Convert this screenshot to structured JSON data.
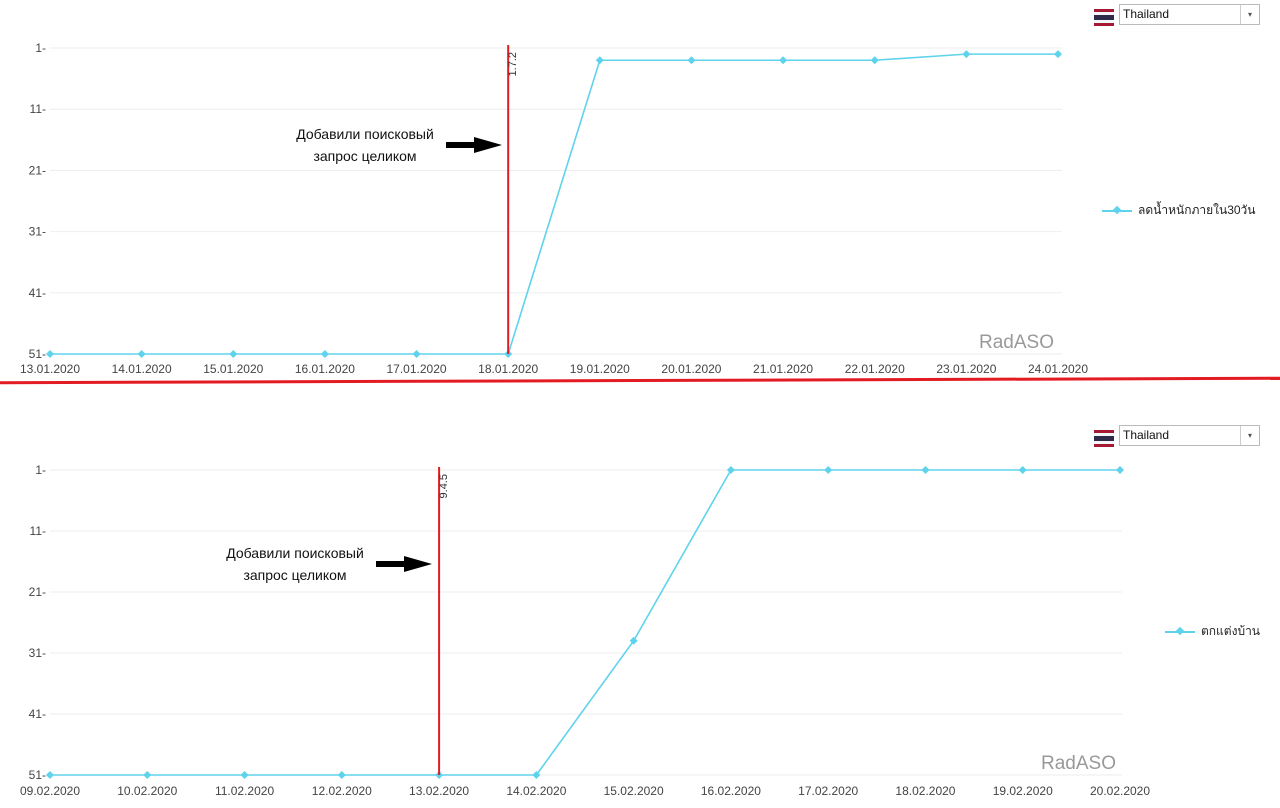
{
  "country_select": {
    "value": "Thailand",
    "caret": "▾",
    "flag_icon": "thailand-flag-icon"
  },
  "colors": {
    "series": "#5fd3ec",
    "marker": "#e31b23",
    "divider": "#e31b23",
    "grid": "#eeeeee",
    "watermark": "#999999"
  },
  "watermark": "RadASO",
  "chart_data": [
    {
      "type": "line",
      "x": [
        "13.01.2020",
        "14.01.2020",
        "15.01.2020",
        "16.01.2020",
        "17.01.2020",
        "18.01.2020",
        "19.01.2020",
        "20.01.2020",
        "21.01.2020",
        "22.01.2020",
        "23.01.2020",
        "24.01.2020"
      ],
      "series": [
        {
          "name": "ลดน้ำหนักภายใน30วัน",
          "values": [
            51,
            51,
            51,
            51,
            51,
            51,
            3,
            3,
            3,
            3,
            2,
            2
          ]
        }
      ],
      "yticks": [
        "1-",
        "11-",
        "21-",
        "31-",
        "41-",
        "51-"
      ],
      "ylim": [
        1,
        51
      ],
      "y_reversed": true,
      "grid": true,
      "legend_position": "right",
      "marker": {
        "x": "18.01.2020",
        "label": "1.7.2"
      },
      "annotation": {
        "line1": "Добавили поисковый",
        "line2": "запрос целиком"
      }
    },
    {
      "type": "line",
      "x": [
        "09.02.2020",
        "10.02.2020",
        "11.02.2020",
        "12.02.2020",
        "13.02.2020",
        "14.02.2020",
        "15.02.2020",
        "16.02.2020",
        "17.02.2020",
        "18.02.2020",
        "19.02.2020",
        "20.02.2020"
      ],
      "series": [
        {
          "name": "ตกแต่งบ้าน",
          "values": [
            51,
            51,
            51,
            51,
            51,
            51,
            29,
            1,
            1,
            1,
            1,
            1
          ]
        }
      ],
      "yticks": [
        "1-",
        "11-",
        "21-",
        "31-",
        "41-",
        "51-"
      ],
      "ylim": [
        1,
        51
      ],
      "y_reversed": true,
      "grid": true,
      "legend_position": "right",
      "marker": {
        "x": "13.02.2020",
        "label": "9.4.5"
      },
      "annotation": {
        "line1": "Добавили поисковый",
        "line2": "запрос целиком"
      }
    }
  ]
}
